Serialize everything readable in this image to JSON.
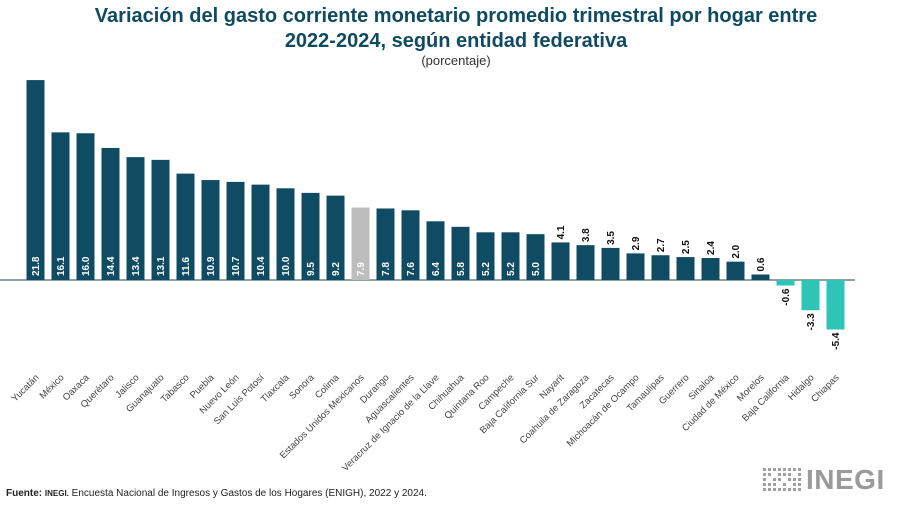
{
  "header": {
    "title_line1": "Variación del gasto corriente monetario promedio trimestral por hogar entre",
    "title_line2": "2022-2024, según entidad federativa",
    "subtitle": "(porcentaje)"
  },
  "footer": {
    "label": "Fuente:",
    "org": "INEGI.",
    "text": " Encuesta Nacional de Ingresos y Gastos de los Hogares (ENIGH), 2022 y 2024."
  },
  "logo": {
    "text": "INEGI",
    "icon": "inegi-grid-icon"
  },
  "colors": {
    "positive": "#0f4c63",
    "negative": "#2ec4b6",
    "national": "#bdbdbd",
    "title": "#0e4a60"
  },
  "chart_data": {
    "type": "bar",
    "title": "Variación del gasto corriente monetario promedio trimestral por hogar entre 2022-2024, según entidad federativa",
    "subtitle": "(porcentaje)",
    "xlabel": "",
    "ylabel": "",
    "grid": false,
    "legend": "none",
    "ylim": [
      -5.4,
      21.8
    ],
    "categories": [
      "Yucatán",
      "México",
      "Oaxaca",
      "Querétaro",
      "Jalisco",
      "Guanajuato",
      "Tabasco",
      "Puebla",
      "Nuevo León",
      "San Luis Potosí",
      "Tlaxcala",
      "Sonora",
      "Colima",
      "Estados Unidos Mexicanos",
      "Durango",
      "Aguascalientes",
      "Veracruz de Ignacio de la Llave",
      "Chihuahua",
      "Quintana Roo",
      "Campeche",
      "Baja California Sur",
      "Nayarit",
      "Coahuila de Zaragoza",
      "Zacatecas",
      "Michoacán de Ocampo",
      "Tamaulipas",
      "Guerrero",
      "Sinaloa",
      "Ciudad de México",
      "Morelos",
      "Baja California",
      "Hidalgo",
      "Chiapas"
    ],
    "values": [
      21.8,
      16.1,
      16.0,
      14.4,
      13.4,
      13.1,
      11.6,
      10.9,
      10.7,
      10.4,
      10.0,
      9.5,
      9.2,
      7.9,
      7.8,
      7.6,
      6.4,
      5.8,
      5.2,
      5.2,
      5.0,
      4.1,
      3.8,
      3.5,
      2.9,
      2.7,
      2.5,
      2.4,
      2.0,
      0.6,
      -0.6,
      -3.3,
      -5.4
    ],
    "labels": [
      "21.8",
      "16.1",
      "16.0",
      "14.4",
      "13.4",
      "13.1",
      "11.6",
      "10.9",
      "10.7",
      "10.4",
      "10.0",
      "9.5",
      "9.2",
      "7.9",
      "7.8",
      "7.6",
      "6.4",
      "5.8",
      "5.2",
      "5.2",
      "5.0",
      "4.1",
      "3.8",
      "3.5",
      "2.9",
      "2.7",
      "2.5",
      "2.4",
      "2.0",
      "0.6",
      "-0.6",
      "-3.3",
      "-5.4"
    ],
    "highlight_category": "Estados Unidos Mexicanos"
  }
}
